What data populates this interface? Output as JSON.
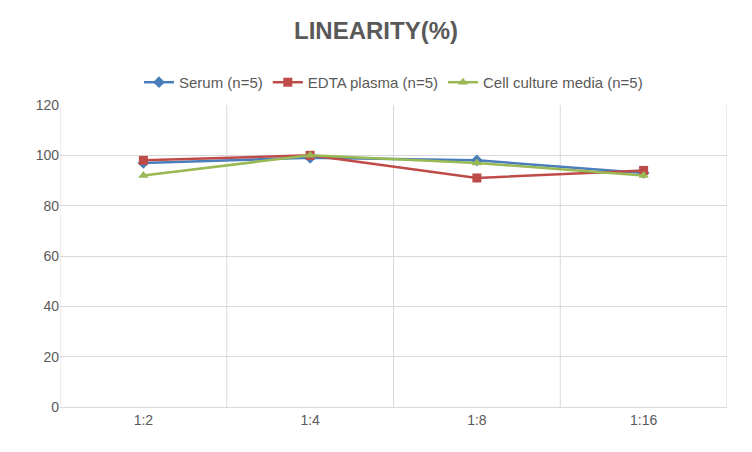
{
  "chart_data": {
    "type": "line",
    "title": "LINEARITY(%)",
    "categories": [
      "1:2",
      "1:4",
      "1:8",
      "1:16"
    ],
    "series": [
      {
        "name": "Serum (n=5)",
        "color": "#4a7ebb",
        "marker": "diamond",
        "values": [
          97,
          99,
          98,
          93
        ]
      },
      {
        "name": "EDTA plasma (n=5)",
        "color": "#be4b48",
        "marker": "square",
        "values": [
          98,
          100,
          91,
          94
        ]
      },
      {
        "name": "Cell culture media (n=5)",
        "color": "#98b954",
        "marker": "triangle-up",
        "values": [
          92,
          100,
          97,
          92
        ]
      }
    ],
    "ylim": [
      0,
      120
    ],
    "yticks": [
      0,
      20,
      40,
      60,
      80,
      100,
      120
    ],
    "grid": true,
    "legend": "top"
  }
}
